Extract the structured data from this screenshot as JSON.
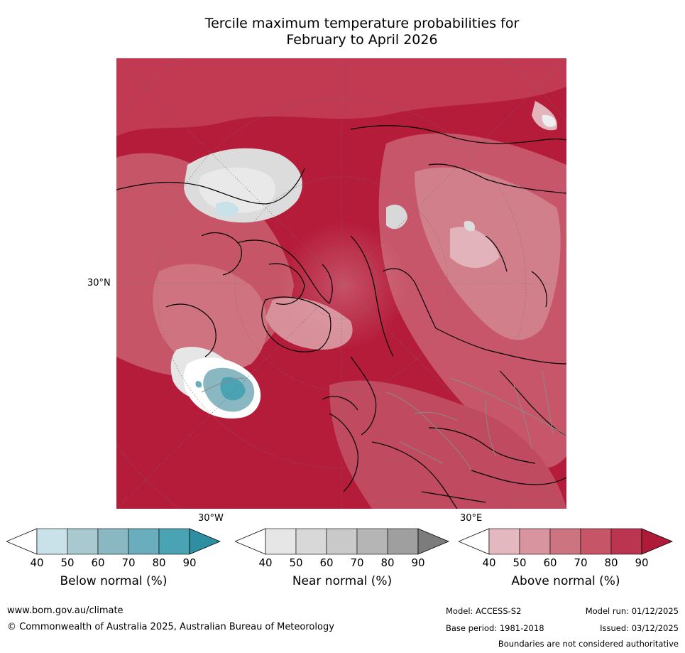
{
  "title": {
    "line1": "Tercile maximum temperature probabilities for",
    "line2": "February to April 2026"
  },
  "map": {
    "projection": "polar-stereographic",
    "region": "Northern Hemisphere",
    "labels": {
      "lat_30n": "30°N",
      "lon_30w": "30°W",
      "lon_30e": "30°E"
    },
    "colors": {
      "above_dominant": "#b51c3a",
      "below_max": "#3a9cad",
      "coast": "#000000",
      "borders": "#8a8a8a"
    }
  },
  "legends": [
    {
      "title": "Below normal (%)",
      "ticks": [
        "40",
        "50",
        "60",
        "70",
        "80",
        "90"
      ],
      "colors": [
        "#ffffff",
        "#c9e1e8",
        "#a7c9cf",
        "#89b8c2",
        "#6aaebd",
        "#4aa3b3",
        "#2e8fa3"
      ]
    },
    {
      "title": "Near normal (%)",
      "ticks": [
        "40",
        "50",
        "60",
        "70",
        "80",
        "90"
      ],
      "colors": [
        "#ffffff",
        "#e6e6e6",
        "#d8d8d8",
        "#c9c9c9",
        "#b5b5b5",
        "#9f9f9f",
        "#7c7c7c"
      ]
    },
    {
      "title": "Above normal (%)",
      "ticks": [
        "40",
        "50",
        "60",
        "70",
        "80",
        "90"
      ],
      "colors": [
        "#ffffff",
        "#e4b8bf",
        "#d9959f",
        "#cc7480",
        "#c65667",
        "#bb3550",
        "#ae1a37"
      ]
    }
  ],
  "footer": {
    "url": "www.bom.gov.au/climate",
    "copyright": "© Commonwealth of Australia 2025, Australian Bureau of Meteorology",
    "model": "Model: ACCESS-S2",
    "base_period": "Base period: 1981-2018",
    "model_run": "Model run: 01/12/2025",
    "issued": "Issued: 03/12/2025",
    "disclaimer": "Boundaries are not considered authoritative"
  }
}
